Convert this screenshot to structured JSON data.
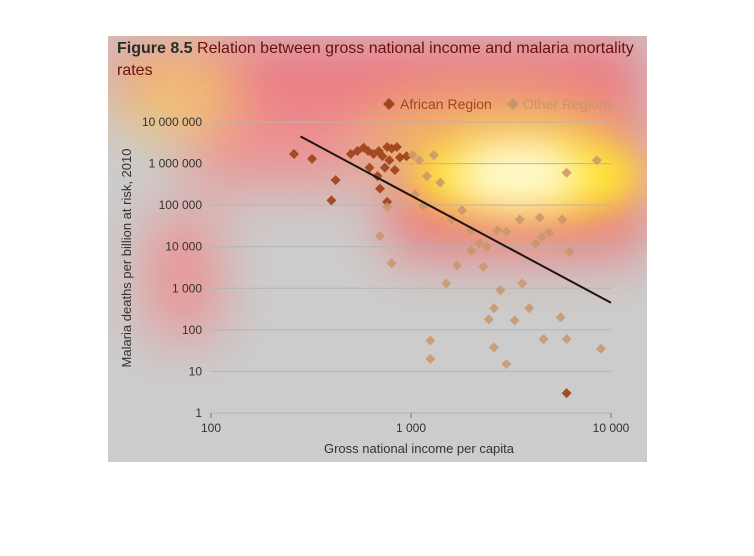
{
  "figure": {
    "label": "Figure 8.5",
    "title": "Relation between gross national income and malaria mortality rates"
  },
  "colors": {
    "african": "#a0461e",
    "other": "#c9956a",
    "trend": "#1e1414",
    "gridline": "#b4b4b4",
    "title_text": "#6b0f0f"
  },
  "chart_data": {
    "type": "scatter",
    "xlabel": "Gross national income per capita",
    "ylabel": "Malaria deaths per billion at risk, 2010",
    "x_scale": "log",
    "y_scale": "log",
    "xlim": [
      100,
      10000
    ],
    "ylim": [
      1,
      10000000
    ],
    "x_ticks": [
      100,
      1000,
      10000
    ],
    "x_tick_labels": [
      "100",
      "1 000",
      "10 000"
    ],
    "y_ticks": [
      1,
      10,
      100,
      1000,
      10000,
      100000,
      1000000,
      10000000
    ],
    "y_tick_labels": [
      "1",
      "10",
      "100",
      "1 000",
      "10 000",
      "100 000",
      "1 000 000",
      "10 000 000"
    ],
    "grid": true,
    "legend": "top-right",
    "series": [
      {
        "name": "African Region",
        "points": [
          [
            260,
            1700000
          ],
          [
            320,
            1300000
          ],
          [
            420,
            400000
          ],
          [
            400,
            130000
          ],
          [
            500,
            1700000
          ],
          [
            540,
            2000000
          ],
          [
            580,
            2400000
          ],
          [
            610,
            2000000
          ],
          [
            650,
            1700000
          ],
          [
            690,
            2000000
          ],
          [
            720,
            1500000
          ],
          [
            760,
            2500000
          ],
          [
            800,
            2300000
          ],
          [
            850,
            2500000
          ],
          [
            880,
            1400000
          ],
          [
            620,
            800000
          ],
          [
            680,
            500000
          ],
          [
            740,
            800000
          ],
          [
            780,
            1200000
          ],
          [
            700,
            250000
          ],
          [
            760,
            120000
          ],
          [
            830,
            700000
          ],
          [
            950,
            1500000
          ],
          [
            6000,
            3
          ]
        ]
      },
      {
        "name": "Other Regions",
        "points": [
          [
            760,
            90000
          ],
          [
            700,
            18000
          ],
          [
            800,
            4000
          ],
          [
            1020,
            1600000
          ],
          [
            1100,
            1200000
          ],
          [
            1200,
            500000
          ],
          [
            1050,
            180000
          ],
          [
            1150,
            95000
          ],
          [
            1300,
            1600000
          ],
          [
            1400,
            350000
          ],
          [
            1600,
            45000
          ],
          [
            1700,
            3500
          ],
          [
            1500,
            1300
          ],
          [
            1800,
            75000
          ],
          [
            2000,
            25000
          ],
          [
            2000,
            8000
          ],
          [
            2200,
            12000
          ],
          [
            2300,
            3300
          ],
          [
            2400,
            10000
          ],
          [
            2700,
            25000
          ],
          [
            3000,
            23000
          ],
          [
            2800,
            900
          ],
          [
            2600,
            330
          ],
          [
            2450,
            180
          ],
          [
            2600,
            38
          ],
          [
            3000,
            15
          ],
          [
            1250,
            55
          ],
          [
            1250,
            20
          ],
          [
            3300,
            170
          ],
          [
            3600,
            1300
          ],
          [
            3900,
            330
          ],
          [
            3500,
            45000
          ],
          [
            4200,
            12000
          ],
          [
            4500,
            17000
          ],
          [
            4900,
            22000
          ],
          [
            4600,
            60
          ],
          [
            5600,
            200
          ],
          [
            6000,
            60
          ],
          [
            5700,
            45000
          ],
          [
            6000,
            600000
          ],
          [
            8500,
            1200000
          ],
          [
            8900,
            35
          ],
          [
            6200,
            7500
          ],
          [
            4400,
            50000
          ]
        ]
      }
    ],
    "trend_line": {
      "x": [
        280,
        10000
      ],
      "y": [
        4500000,
        450
      ]
    }
  }
}
